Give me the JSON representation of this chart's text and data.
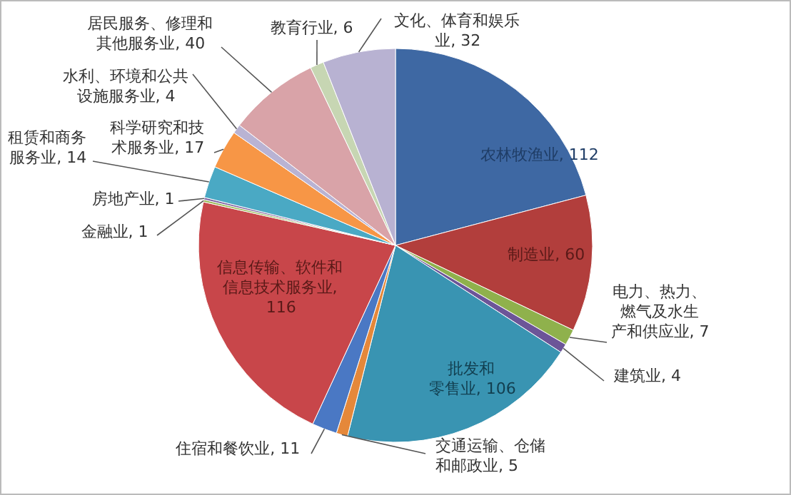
{
  "chart_data": {
    "type": "pie",
    "categories": [
      "农林牧渔业",
      "制造业",
      "电力、热力、燃气及水生产和供应业",
      "建筑业",
      "批发和零售业",
      "交通运输、仓储和邮政业",
      "住宿和餐饮业",
      "信息传输、软件和信息技术服务业",
      "金融业",
      "房地产业",
      "租赁和商务服务业",
      "科学研究和技术服务业",
      "水利、环境和公共设施服务业",
      "居民服务、修理和其他服务业",
      "教育行业",
      "文化、体育和娱乐业"
    ],
    "values": [
      112,
      60,
      7,
      4,
      106,
      5,
      11,
      116,
      1,
      1,
      14,
      17,
      4,
      40,
      6,
      32
    ],
    "colors": [
      "#3e68a3",
      "#b23e3c",
      "#8fb14c",
      "#6c5598",
      "#3994b2",
      "#e5883a",
      "#4a78c4",
      "#c8464a",
      "#9bbb59",
      "#8064a2",
      "#4aa9c4",
      "#f79646",
      "#b9b3d3",
      "#d9a3a8",
      "#c7d6b3",
      "#b8b2d2"
    ],
    "value_labels": [
      ", 112",
      ", 60",
      ", 7",
      ", 4",
      ", 106",
      ", 5",
      ", 11",
      ", 116",
      ", 1",
      ", 1",
      ", 14",
      ", 17",
      ", 4",
      ", 40",
      ", 6",
      ", 32"
    ]
  }
}
